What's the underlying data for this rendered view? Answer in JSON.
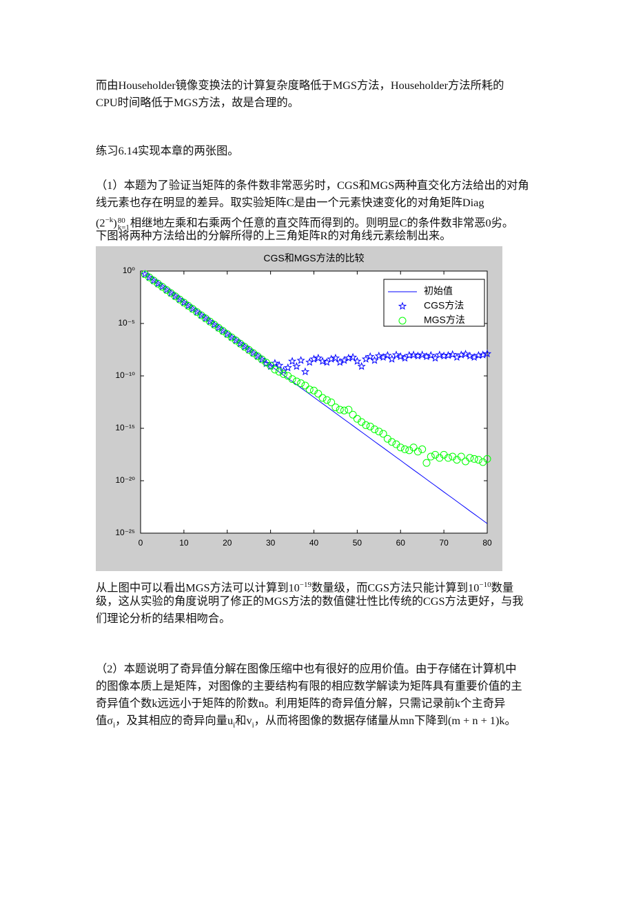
{
  "document": {
    "lines": [
      [
        "而由Householder镜像变换法的计算复杂度略低于MGS方法，Householder方法所耗的"
      ],
      [
        "CPU时间略低于MGS方法，故是合理的。"
      ],
      [
        "练习6.14实现本章的两张图。"
      ],
      [
        "（1）本题为了验证当矩阵的条件数非常恶劣时，CGS和MGS两种直交化方法给出的对角"
      ],
      [
        "线元素也存在明显的差异。取实验矩阵C是由一个元素快速变化的对角矩阵Diag"
      ],
      [
        "(2",
        {
          "sup": "−k"
        },
        ")",
        {
          "sup": "80",
          "sub": "k=1"
        },
        "相继地左乘和右乘两个任意的直交阵而得到的。则明显C的条件数非常恶0劣。"
      ],
      [
        "下图将两种方法给出的分解所得的上三角矩阵R的对角线元素绘制出来。"
      ],
      [
        "从上图中可以看出MGS方法可以计算到10",
        {
          "sup": "−19"
        },
        "数量级，而CGS方法只能计算到10",
        {
          "sup": "−10"
        },
        "数量"
      ],
      [
        "级，这从实验的角度说明了修正的MGS方法的数值健壮性比传统的CGS方法更好，与我"
      ],
      [
        "们理论分析的结果相吻合。"
      ],
      [
        "（2）本题说明了奇异值分解在图像压缩中也有很好的应用价值。由于存储在计算机中"
      ],
      [
        "的图像本质上是矩阵，对图像的主要结构有限的相应数学解读为矩阵具有重要价值的主"
      ],
      [
        "奇异值个数k远远小于矩阵的阶数n。利用矩阵的奇异值分解，只需记录前k个主奇异"
      ],
      [
        "值σ",
        {
          "sub": "i"
        },
        "，及其相应的奇异向量u",
        {
          "sub": "i"
        },
        "和v",
        {
          "sub": "i"
        },
        "，从而将图像的数据存储量从mn下降到(m + n + 1)k。"
      ]
    ]
  },
  "chart_data": {
    "type": "line",
    "title": "CGS和MGS方法的比较",
    "background": "#cdcdcd",
    "legend": "upper right",
    "ylog": true,
    "xlim": [
      0,
      80
    ],
    "xticks": [
      0,
      10,
      20,
      30,
      40,
      50,
      60,
      70,
      80
    ],
    "ylim": [
      1e-25,
      1
    ],
    "yticks": [
      {
        "value": 1,
        "label": "10⁰"
      },
      {
        "value": 1e-05,
        "label": "10⁻⁵"
      },
      {
        "value": 1e-10,
        "label": "10⁻¹⁰"
      },
      {
        "value": 1e-15,
        "label": "10⁻¹⁵"
      },
      {
        "value": 1e-20,
        "label": "10⁻²⁰"
      },
      {
        "value": 1e-25,
        "label": "10⁻²⁵"
      }
    ],
    "x": [
      1,
      2,
      3,
      4,
      5,
      6,
      7,
      8,
      9,
      10,
      11,
      12,
      13,
      14,
      15,
      16,
      17,
      18,
      19,
      20,
      21,
      22,
      23,
      24,
      25,
      26,
      27,
      28,
      29,
      30,
      31,
      32,
      33,
      34,
      35,
      36,
      37,
      38,
      39,
      40,
      41,
      42,
      43,
      44,
      45,
      46,
      47,
      48,
      49,
      50,
      51,
      52,
      53,
      54,
      55,
      56,
      57,
      58,
      59,
      60,
      61,
      62,
      63,
      64,
      65,
      66,
      67,
      68,
      69,
      70,
      71,
      72,
      73,
      74,
      75,
      76,
      77,
      78,
      79,
      80
    ],
    "series": [
      {
        "name": "初始值",
        "type": "line",
        "color": "#0000ff",
        "values": [
          0.5,
          0.25,
          0.125,
          0.0625,
          0.0313,
          0.0156,
          0.00781,
          0.00391,
          0.00195,
          0.000977,
          0.000488,
          0.000244,
          0.000122,
          6.1e-05,
          3.05e-05,
          1.53e-05,
          7.63e-06,
          3.81e-06,
          1.91e-06,
          9.54e-07,
          4.77e-07,
          2.38e-07,
          1.19e-07,
          5.96e-08,
          2.98e-08,
          1.49e-08,
          7.45e-09,
          3.73e-09,
          1.86e-09,
          9.31e-10,
          4.66e-10,
          2.33e-10,
          1.16e-10,
          5.82e-11,
          2.91e-11,
          1.46e-11,
          7.28e-12,
          3.64e-12,
          1.82e-12,
          9.09e-13,
          4.55e-13,
          2.27e-13,
          1.14e-13,
          5.68e-14,
          2.84e-14,
          1.42e-14,
          7.11e-15,
          3.55e-15,
          1.78e-15,
          8.88e-16,
          4.44e-16,
          2.22e-16,
          1.11e-16,
          5.55e-17,
          2.78e-17,
          1.39e-17,
          6.94e-18,
          3.47e-18,
          1.73e-18,
          8.67e-19,
          4.34e-19,
          2.17e-19,
          1.08e-19,
          5.42e-20,
          2.71e-20,
          1.36e-20,
          6.78e-21,
          3.39e-21,
          1.69e-21,
          8.47e-22,
          4.24e-22,
          2.12e-22,
          1.06e-22,
          5.29e-23,
          2.65e-23,
          1.32e-23,
          6.62e-24,
          3.31e-24,
          1.65e-24,
          8.27e-25
        ]
      },
      {
        "name": "CGS方法",
        "type": "scatter",
        "marker": "star",
        "color": "#0000ff",
        "values": [
          0.5,
          0.25,
          0.125,
          0.0625,
          0.0313,
          0.0156,
          0.00781,
          0.00391,
          0.00195,
          0.000977,
          0.000488,
          0.000244,
          0.000122,
          6.1e-05,
          3.05e-05,
          1.53e-05,
          7.63e-06,
          3.81e-06,
          1.91e-06,
          9.54e-07,
          4.77e-07,
          2.38e-07,
          1.19e-07,
          5.96e-08,
          2.98e-08,
          1.49e-08,
          7.45e-09,
          3.73e-09,
          1.5e-09,
          8e-10,
          1.6e-09,
          1e-09,
          3e-10,
          6e-10,
          2.5e-09,
          8e-10,
          3e-09,
          2.5e-10,
          2e-09,
          4e-09,
          5e-09,
          2.5e-09,
          2e-09,
          4e-09,
          5e-09,
          2e-09,
          3e-09,
          5e-09,
          6e-09,
          2.5e-09,
          8e-10,
          4e-09,
          7e-09,
          3e-09,
          8e-09,
          6e-09,
          9e-09,
          4e-09,
          1e-08,
          7e-09,
          5e-09,
          9e-09,
          1e-08,
          8e-09,
          1e-08,
          7e-09,
          9e-09,
          5e-09,
          1e-08,
          8e-09,
          9e-09,
          1.1e-08,
          6e-09,
          1e-08,
          1.2e-08,
          8e-09,
          6e-09,
          9e-09,
          1e-08,
          1.3e-08
        ]
      },
      {
        "name": "MGS方法",
        "type": "scatter",
        "marker": "circle",
        "color": "#00ff00",
        "values": [
          0.5,
          0.25,
          0.125,
          0.0625,
          0.0313,
          0.0156,
          0.00781,
          0.00391,
          0.00195,
          0.000977,
          0.000488,
          0.000244,
          0.000122,
          6.1e-05,
          3.05e-05,
          1.53e-05,
          7.63e-06,
          3.81e-06,
          1.91e-06,
          9.54e-07,
          4.77e-07,
          2.38e-07,
          1.19e-07,
          5.96e-08,
          2.98e-08,
          1.49e-08,
          7.45e-09,
          3.73e-09,
          1.86e-09,
          9.31e-10,
          4e-10,
          2.5e-10,
          1.5e-10,
          1e-10,
          5e-11,
          3e-11,
          2e-11,
          1.2e-11,
          5e-12,
          4e-12,
          2e-12,
          8e-13,
          5e-13,
          3e-13,
          1e-13,
          6e-14,
          5e-14,
          6e-14,
          2e-14,
          8e-15,
          4e-15,
          2e-15,
          1.5e-15,
          8e-16,
          5e-16,
          3e-16,
          1e-16,
          5e-17,
          3e-17,
          1.5e-17,
          1e-17,
          8e-18,
          1.5e-17,
          6e-18,
          1e-17,
          5e-19,
          2e-18,
          3e-18,
          1.5e-18,
          3e-18,
          1.5e-18,
          2e-18,
          1e-18,
          2e-18,
          7e-19,
          1.5e-18,
          1.2e-18,
          1e-18,
          6e-19,
          1.2e-18
        ]
      }
    ]
  }
}
